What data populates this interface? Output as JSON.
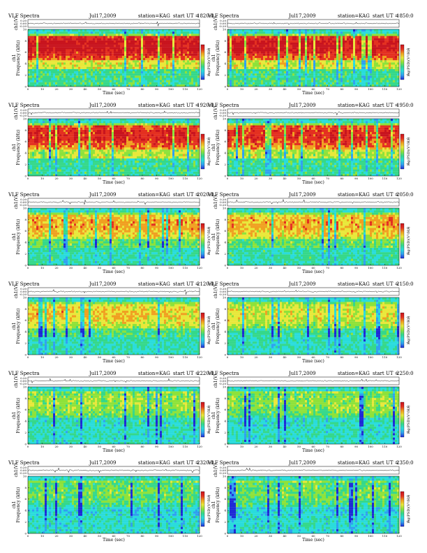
{
  "colors": {
    "spectrogram_scale": [
      "#1e2ad6",
      "#2fa0f0",
      "#29dcdc",
      "#35d88a",
      "#8ee23a",
      "#e8e83a",
      "#f0a020",
      "#e43020",
      "#c8141e"
    ],
    "waveform": "#000000",
    "frame": "#000000"
  },
  "common": {
    "plot_title": "VLF Spectra",
    "date": "Jul17,2009",
    "station": "station=KAG",
    "ut_prefix": "start  UT =",
    "waveform_ylabel": "ch1(V)",
    "spec_ylabel_channel": "ch1",
    "spec_ylabel": "Frequency (kHz)",
    "xlabel": "Time (sec)",
    "colorbar_label": "log(PSD)(V²/Hz)",
    "x_ticks": [
      "0",
      "10",
      "20",
      "30",
      "40",
      "50",
      "60",
      "70",
      "80",
      "90",
      "100",
      "110",
      "120"
    ],
    "waveform_ticks": [
      "0.20",
      "0.00",
      "-0.20"
    ],
    "freq_ticks": [
      "0",
      "2",
      "4",
      "6",
      "8",
      "10"
    ],
    "colorbar_ticks": [
      "-3",
      "-6"
    ]
  },
  "chart_data": [
    {
      "type": "heatmap",
      "start_ut": "1820:0",
      "xlim": [
        0,
        120
      ],
      "ylim": [
        0,
        10
      ],
      "waveform_ylim": [
        -0.2,
        0.2
      ],
      "intensity": 0.95
    },
    {
      "type": "heatmap",
      "start_ut": "1850:0",
      "xlim": [
        0,
        120
      ],
      "ylim": [
        0,
        10
      ],
      "waveform_ylim": [
        -0.2,
        0.2
      ],
      "intensity": 0.93
    },
    {
      "type": "heatmap",
      "start_ut": "1920:0",
      "xlim": [
        0,
        120
      ],
      "ylim": [
        0,
        10
      ],
      "waveform_ylim": [
        -0.2,
        0.2
      ],
      "intensity": 0.88
    },
    {
      "type": "heatmap",
      "start_ut": "1950:0",
      "xlim": [
        0,
        120
      ],
      "ylim": [
        0,
        10
      ],
      "waveform_ylim": [
        -0.2,
        0.2
      ],
      "intensity": 0.86
    },
    {
      "type": "heatmap",
      "start_ut": "2020:0",
      "xlim": [
        0,
        120
      ],
      "ylim": [
        0,
        10
      ],
      "waveform_ylim": [
        -0.2,
        0.2
      ],
      "intensity": 0.72
    },
    {
      "type": "heatmap",
      "start_ut": "2050:0",
      "xlim": [
        0,
        120
      ],
      "ylim": [
        0,
        10
      ],
      "waveform_ylim": [
        -0.2,
        0.2
      ],
      "intensity": 0.7
    },
    {
      "type": "heatmap",
      "start_ut": "2120:0",
      "xlim": [
        0,
        120
      ],
      "ylim": [
        0,
        10
      ],
      "waveform_ylim": [
        -0.2,
        0.2
      ],
      "intensity": 0.66
    },
    {
      "type": "heatmap",
      "start_ut": "2150:0",
      "xlim": [
        0,
        120
      ],
      "ylim": [
        0,
        10
      ],
      "waveform_ylim": [
        -0.2,
        0.2
      ],
      "intensity": 0.6
    },
    {
      "type": "heatmap",
      "start_ut": "2220:0",
      "xlim": [
        0,
        120
      ],
      "ylim": [
        0,
        10
      ],
      "waveform_ylim": [
        -0.2,
        0.2
      ],
      "intensity": 0.52
    },
    {
      "type": "heatmap",
      "start_ut": "2250:0",
      "xlim": [
        0,
        120
      ],
      "ylim": [
        0,
        10
      ],
      "waveform_ylim": [
        -0.2,
        0.2
      ],
      "intensity": 0.5
    },
    {
      "type": "heatmap",
      "start_ut": "2320:0",
      "xlim": [
        0,
        120
      ],
      "ylim": [
        0,
        10
      ],
      "waveform_ylim": [
        -0.2,
        0.2
      ],
      "intensity": 0.44
    },
    {
      "type": "heatmap",
      "start_ut": "2350:0",
      "xlim": [
        0,
        120
      ],
      "ylim": [
        0,
        10
      ],
      "waveform_ylim": [
        -0.2,
        0.2
      ],
      "intensity": 0.46
    }
  ]
}
